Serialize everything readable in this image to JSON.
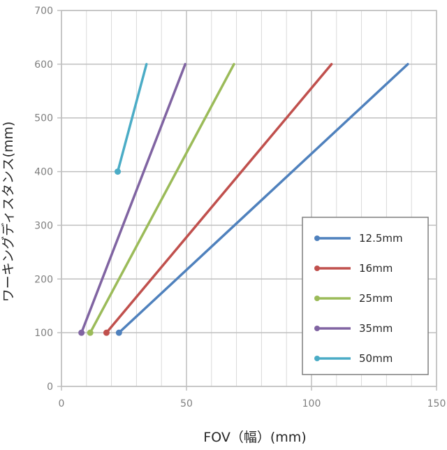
{
  "chart_data": {
    "type": "line",
    "title": "",
    "xlabel": "FOV（幅）(mm)",
    "ylabel": "ワーキングディスタンス(mm)",
    "xlim": [
      0,
      150
    ],
    "ylim": [
      0,
      700
    ],
    "xticks": [
      0,
      50,
      100,
      150
    ],
    "yticks": [
      0,
      100,
      200,
      300,
      400,
      500,
      600,
      700
    ],
    "grid": true,
    "legend_position": "bottom-right",
    "series": [
      {
        "name": "12.5mm",
        "color": "#4f81bd",
        "points": [
          [
            23,
            100
          ],
          [
            138.5,
            600
          ]
        ]
      },
      {
        "name": "16mm",
        "color": "#c0504d",
        "points": [
          [
            18,
            100
          ],
          [
            108,
            600
          ]
        ]
      },
      {
        "name": "25mm",
        "color": "#9bbb59",
        "points": [
          [
            11.5,
            100
          ],
          [
            69,
            600
          ]
        ]
      },
      {
        "name": "35mm",
        "color": "#8064a2",
        "points": [
          [
            8,
            100
          ],
          [
            49.5,
            600
          ]
        ]
      },
      {
        "name": "50mm",
        "color": "#4bacc6",
        "points": [
          [
            22.5,
            400
          ],
          [
            34,
            600
          ]
        ]
      }
    ]
  }
}
